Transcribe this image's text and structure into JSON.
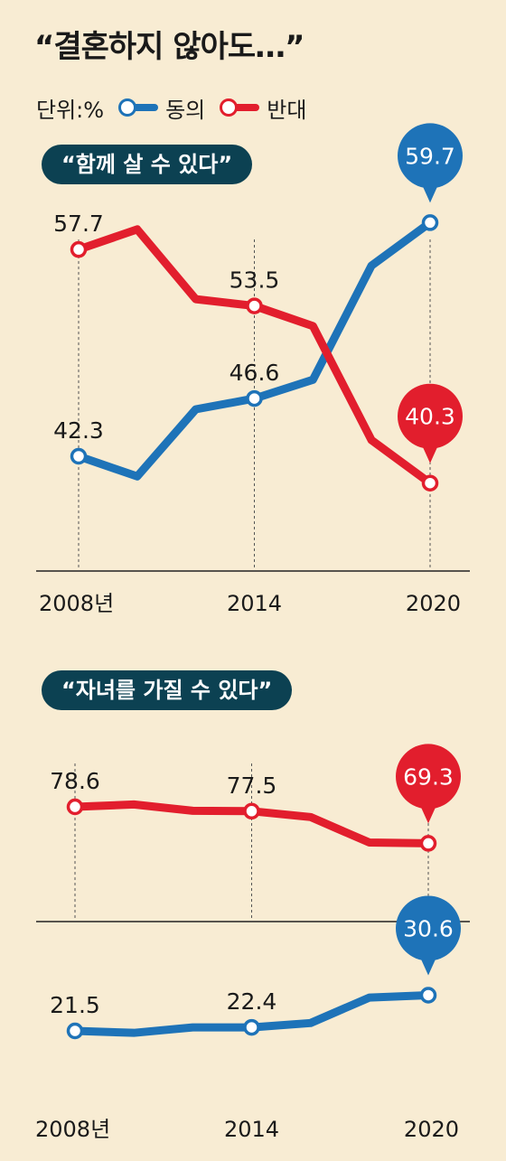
{
  "title": "“결혼하지 않아도…”",
  "legend": {
    "unit": "단위:%",
    "items": [
      {
        "name": "동의",
        "color": "#1e73b8"
      },
      {
        "name": "반대",
        "color": "#e21e2d"
      }
    ]
  },
  "chart_data": [
    {
      "type": "line",
      "title": "“함께 살 수 있다”",
      "x": [
        2008,
        2010,
        2012,
        2014,
        2016,
        2018,
        2020
      ],
      "tick_labels": [
        "2008년",
        "2014",
        "2020"
      ],
      "tick_x": [
        2008,
        2014,
        2020
      ],
      "series": [
        {
          "name": "동의",
          "color": "#1e73b8",
          "values": [
            42.3,
            40.8,
            45.8,
            46.6,
            48.0,
            56.5,
            59.7
          ]
        },
        {
          "name": "반대",
          "color": "#e21e2d",
          "values": [
            57.7,
            59.2,
            54.0,
            53.5,
            52.0,
            43.5,
            40.3
          ]
        }
      ],
      "labels": [
        {
          "series": 1,
          "index": 0,
          "text": "57.7"
        },
        {
          "series": 0,
          "index": 0,
          "text": "42.3"
        },
        {
          "series": 1,
          "index": 3,
          "text": "53.5"
        },
        {
          "series": 0,
          "index": 3,
          "text": "46.6"
        },
        {
          "series": 0,
          "index": 6,
          "text": "59.7",
          "bubble": true
        },
        {
          "series": 1,
          "index": 6,
          "text": "40.3",
          "bubble": true
        }
      ]
    },
    {
      "type": "line",
      "title": "“자녀를 가질 수 있다”",
      "x": [
        2008,
        2010,
        2012,
        2014,
        2016,
        2018,
        2020
      ],
      "tick_labels": [
        "2008년",
        "2014",
        "2020"
      ],
      "tick_x": [
        2008,
        2014,
        2020
      ],
      "series": [
        {
          "name": "동의",
          "color": "#1e73b8",
          "values": [
            21.5,
            21.0,
            22.4,
            22.4,
            23.5,
            30.0,
            30.6
          ]
        },
        {
          "name": "반대",
          "color": "#e21e2d",
          "values": [
            78.6,
            79.2,
            77.6,
            77.5,
            76.0,
            69.5,
            69.3
          ]
        }
      ],
      "labels": [
        {
          "series": 1,
          "index": 0,
          "text": "78.6"
        },
        {
          "series": 1,
          "index": 3,
          "text": "77.5"
        },
        {
          "series": 1,
          "index": 6,
          "text": "69.3",
          "bubble": true
        },
        {
          "series": 0,
          "index": 0,
          "text": "21.5"
        },
        {
          "series": 0,
          "index": 3,
          "text": "22.4"
        },
        {
          "series": 0,
          "index": 6,
          "text": "30.6",
          "bubble": true
        }
      ]
    }
  ]
}
